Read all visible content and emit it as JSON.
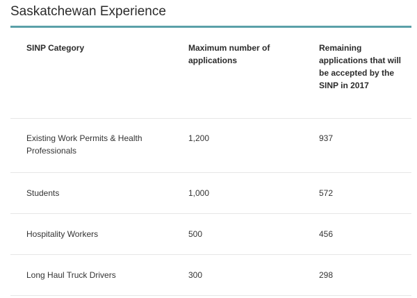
{
  "title": "Saskatchewan Experience",
  "accent_color": "#5aa0a8",
  "table": {
    "headers": [
      "SINP Category",
      "Maximum number of applications",
      "Remaining applications that will be accepted by the SINP in 2017"
    ],
    "rows": [
      [
        "Existing Work Permits & Health Professionals",
        "1,200",
        "937"
      ],
      [
        "Students",
        "1,000",
        "572"
      ],
      [
        "Hospitality Workers",
        "500",
        "456"
      ],
      [
        "Long Haul Truck Drivers",
        "300",
        "298"
      ]
    ]
  }
}
